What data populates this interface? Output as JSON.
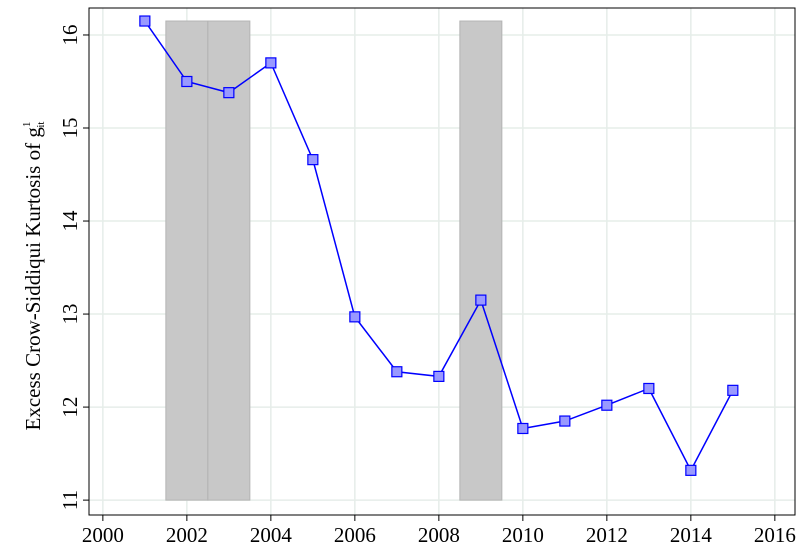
{
  "chart_data": {
    "type": "line",
    "ylabel": "Excess Crow-Siddiqui Kurtosis of g",
    "ylabel_sup": "1",
    "ylabel_sub": "it",
    "x": [
      2001,
      2002,
      2003,
      2004,
      2005,
      2006,
      2007,
      2008,
      2009,
      2010,
      2011,
      2012,
      2013,
      2014,
      2015
    ],
    "series": [
      {
        "color": "#0000ff",
        "marker_fill": "#9999ff",
        "values": [
          16.15,
          15.5,
          15.38,
          15.7,
          14.66,
          12.97,
          12.38,
          12.33,
          13.15,
          11.77,
          11.85,
          12.02,
          12.2,
          11.32,
          12.18
        ]
      }
    ],
    "shaded_regions": [
      {
        "x": [
          2001.5,
          2002.5
        ],
        "y": [
          11,
          16.15
        ]
      },
      {
        "x": [
          2002.5,
          2003.5
        ],
        "y": [
          11,
          16.15
        ]
      },
      {
        "x": [
          2008.5,
          2009.5
        ],
        "y": [
          11,
          16.15
        ]
      }
    ],
    "shade_color": "#c8c8c8",
    "xlim": [
      1999.67,
      2016.48
    ],
    "ylim": [
      10.84,
      16.29
    ],
    "xticks": [
      2000,
      2002,
      2004,
      2006,
      2008,
      2010,
      2012,
      2014,
      2016
    ],
    "yticks": [
      11,
      12,
      13,
      14,
      15,
      16
    ],
    "grid": true
  }
}
